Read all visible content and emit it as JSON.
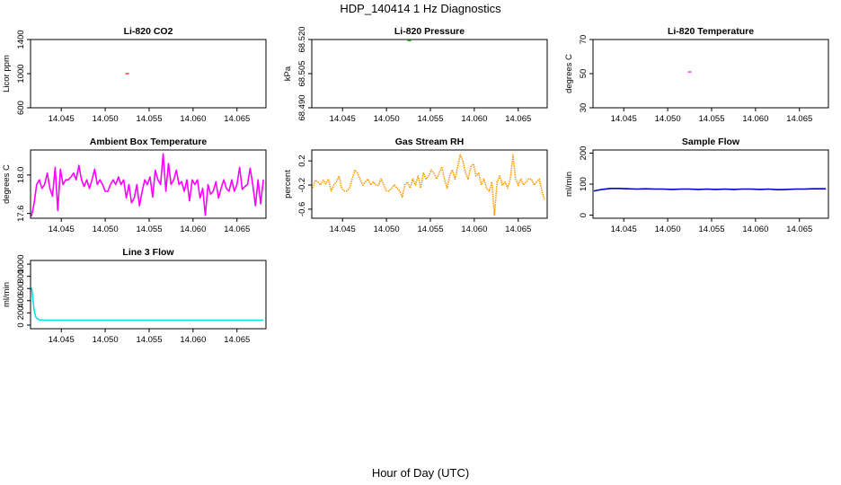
{
  "main_title": "HDP_140414  1 Hz Diagnostics",
  "x_axis_label": "Hour of Day (UTC)",
  "chart_data": [
    {
      "type": "scatter",
      "title": "Li-820 CO2",
      "ylabel": "Licor ppm",
      "xlim": [
        14.0415,
        14.0683
      ],
      "ylim": [
        600,
        1400
      ],
      "xticks": [
        "14.045",
        "14.050",
        "14.055",
        "14.060",
        "14.065"
      ],
      "yticks": [
        "600",
        "1000",
        "1400"
      ],
      "color": "#ff0000",
      "series": [
        {
          "x": [
            14.0525
          ],
          "y": [
            1000
          ]
        }
      ]
    },
    {
      "type": "scatter",
      "title": "Li-820 Pressure",
      "ylabel": "kPa",
      "xlim": [
        14.0415,
        14.0683
      ],
      "ylim": [
        68.49,
        68.52
      ],
      "xticks": [
        "14.045",
        "14.050",
        "14.055",
        "14.060",
        "14.065"
      ],
      "yticks": [
        "68.490",
        "68.505",
        "68.520"
      ],
      "color": "#00aa00",
      "series": [
        {
          "x": [
            14.0526
          ],
          "y": [
            68.5195
          ]
        }
      ]
    },
    {
      "type": "scatter",
      "title": "Li-820 Temperature",
      "ylabel": "degrees C",
      "xlim": [
        14.0415,
        14.0683
      ],
      "ylim": [
        30,
        70
      ],
      "xticks": [
        "14.045",
        "14.050",
        "14.055",
        "14.060",
        "14.065"
      ],
      "yticks": [
        "30",
        "50",
        "70"
      ],
      "color": "#ff00ff",
      "series": [
        {
          "x": [
            14.0525
          ],
          "y": [
            51
          ]
        }
      ]
    },
    {
      "type": "line",
      "title": "Ambient Box Temperature",
      "ylabel": "degrees C",
      "xlim": [
        14.0415,
        14.0683
      ],
      "ylim": [
        17.55,
        18.26
      ],
      "xticks": [
        "14.045",
        "14.050",
        "14.055",
        "14.060",
        "14.065"
      ],
      "yticks": [
        "17.6",
        "18.0"
      ],
      "color": "#ff00ff",
      "series": [
        {
          "x": [
            14.0416,
            14.0419,
            14.0422,
            14.0425,
            14.0428,
            14.0431,
            14.0434,
            14.0437,
            14.044,
            14.0443,
            14.0446,
            14.0449,
            14.0452,
            14.0455,
            14.0458,
            14.0461,
            14.0464,
            14.0467,
            14.047,
            14.0473,
            14.0476,
            14.0479,
            14.0482,
            14.0485,
            14.0488,
            14.0491,
            14.0494,
            14.0497,
            14.05,
            14.0503,
            14.0506,
            14.0509,
            14.0512,
            14.0515,
            14.0518,
            14.0521,
            14.0524,
            14.0527,
            14.053,
            14.0533,
            14.0536,
            14.0539,
            14.0542,
            14.0545,
            14.0548,
            14.0551,
            14.0554,
            14.0557,
            14.056,
            14.0563,
            14.0566,
            14.0569,
            14.0572,
            14.0575,
            14.0578,
            14.0581,
            14.0584,
            14.0587,
            14.059,
            14.0593,
            14.0596,
            14.0599,
            14.0602,
            14.0605,
            14.0608,
            14.0611,
            14.0614,
            14.0617,
            14.062,
            14.0623,
            14.0626,
            14.0629,
            14.0632,
            14.0635,
            14.0638,
            14.0641,
            14.0644,
            14.0647,
            14.065,
            14.0653,
            14.0656,
            14.0659,
            14.0662,
            14.0665,
            14.0668,
            14.0671,
            14.0674,
            14.0677,
            14.068
          ],
          "y": [
            17.57,
            17.7,
            17.9,
            17.95,
            17.86,
            17.9,
            18.02,
            17.86,
            17.78,
            18.08,
            17.63,
            18.06,
            17.9,
            17.95,
            17.95,
            17.98,
            18.02,
            17.95,
            18.1,
            17.95,
            17.88,
            17.95,
            17.86,
            17.95,
            18.06,
            17.9,
            17.95,
            17.9,
            17.83,
            17.83,
            17.9,
            17.95,
            17.9,
            17.98,
            17.9,
            17.95,
            17.76,
            17.9,
            17.71,
            17.76,
            17.9,
            17.68,
            17.83,
            17.95,
            17.9,
            17.98,
            17.77,
            18.05,
            17.95,
            17.9,
            18.22,
            17.83,
            18.12,
            17.9,
            17.95,
            18.05,
            17.9,
            17.93,
            17.83,
            17.95,
            17.73,
            17.95,
            17.9,
            17.95,
            17.76,
            17.86,
            17.58,
            17.9,
            17.8,
            17.83,
            17.93,
            17.76,
            17.86,
            17.95,
            17.86,
            17.83,
            17.95,
            17.83,
            17.9,
            18.08,
            17.85,
            17.88,
            17.9,
            18.07,
            17.9,
            17.68,
            17.95,
            17.7,
            17.95
          ]
        }
      ]
    },
    {
      "type": "line",
      "title": "Gas Stream RH",
      "ylabel": "percent",
      "xlim": [
        14.0415,
        14.0683
      ],
      "ylim": [
        -0.75,
        0.38
      ],
      "xticks": [
        "14.045",
        "14.050",
        "14.055",
        "14.060",
        "14.065"
      ],
      "yticks": [
        "-0.6",
        "-0.2",
        "0.2"
      ],
      "color": "#ff9900",
      "series": [
        {
          "x": [
            14.0416,
            14.0419,
            14.0422,
            14.0425,
            14.0428,
            14.0431,
            14.0434,
            14.0437,
            14.044,
            14.0443,
            14.0446,
            14.0449,
            14.0452,
            14.0455,
            14.0458,
            14.0461,
            14.0464,
            14.0467,
            14.047,
            14.0473,
            14.0476,
            14.0479,
            14.0482,
            14.0485,
            14.0488,
            14.0491,
            14.0494,
            14.0497,
            14.05,
            14.0503,
            14.0506,
            14.0509,
            14.0512,
            14.0515,
            14.0518,
            14.0521,
            14.0524,
            14.0527,
            14.053,
            14.0533,
            14.0536,
            14.0539,
            14.0542,
            14.0545,
            14.0548,
            14.0551,
            14.0554,
            14.0557,
            14.056,
            14.0563,
            14.0566,
            14.0569,
            14.0572,
            14.0575,
            14.0578,
            14.0581,
            14.0584,
            14.0587,
            14.059,
            14.0593,
            14.0596,
            14.0599,
            14.0602,
            14.0605,
            14.0608,
            14.0611,
            14.0614,
            14.0617,
            14.062,
            14.0623,
            14.0626,
            14.0629,
            14.0632,
            14.0635,
            14.0638,
            14.0641,
            14.0644,
            14.0647,
            14.065,
            14.0653,
            14.0656,
            14.0659,
            14.0662,
            14.0665,
            14.0668,
            14.0671,
            14.0674,
            14.0677,
            14.068
          ],
          "y": [
            -0.25,
            -0.12,
            -0.15,
            -0.2,
            -0.12,
            -0.18,
            -0.1,
            -0.3,
            -0.2,
            -0.15,
            -0.05,
            -0.25,
            -0.3,
            -0.3,
            -0.25,
            -0.1,
            0.05,
            0.0,
            -0.1,
            -0.2,
            -0.15,
            -0.1,
            -0.2,
            -0.15,
            -0.2,
            -0.2,
            -0.1,
            -0.2,
            -0.3,
            -0.3,
            -0.25,
            -0.2,
            -0.25,
            -0.3,
            -0.4,
            -0.2,
            -0.15,
            -0.25,
            -0.1,
            -0.2,
            -0.05,
            -0.25,
            0.0,
            -0.1,
            -0.05,
            0.05,
            0.0,
            -0.1,
            0.0,
            0.1,
            -0.1,
            -0.25,
            -0.05,
            0.05,
            -0.1,
            0.1,
            0.3,
            0.2,
            0.0,
            -0.1,
            0.1,
            0.15,
            -0.05,
            0.0,
            -0.2,
            -0.1,
            -0.25,
            -0.3,
            -0.15,
            -0.7,
            -0.15,
            -0.05,
            -0.2,
            -0.15,
            -0.25,
            -0.1,
            0.3,
            -0.1,
            -0.2,
            -0.1,
            -0.2,
            -0.15,
            -0.1,
            -0.1,
            -0.2,
            -0.15,
            -0.1,
            -0.3,
            -0.45
          ]
        }
      ]
    },
    {
      "type": "line",
      "title": "Sample Flow",
      "ylabel": "ml/min",
      "xlim": [
        14.0415,
        14.0683
      ],
      "ylim": [
        -10,
        210
      ],
      "xticks": [
        "14.045",
        "14.050",
        "14.055",
        "14.060",
        "14.065"
      ],
      "yticks": [
        "0",
        "100",
        "200"
      ],
      "color": "#0000cc",
      "series": [
        {
          "x": [
            14.0416,
            14.0425,
            14.0435,
            14.0445,
            14.0455,
            14.0465,
            14.0475,
            14.0485,
            14.0495,
            14.0505,
            14.0515,
            14.0525,
            14.0535,
            14.0545,
            14.0555,
            14.0565,
            14.0575,
            14.0585,
            14.0595,
            14.0605,
            14.0615,
            14.0625,
            14.0635,
            14.0645,
            14.0655,
            14.0665,
            14.0675,
            14.068
          ],
          "y": [
            78,
            83,
            86,
            86,
            85,
            84,
            85,
            84,
            84,
            83,
            84,
            84,
            83,
            84,
            83,
            84,
            83,
            84,
            84,
            83,
            84,
            82,
            83,
            84,
            84,
            85,
            85,
            85
          ]
        }
      ]
    },
    {
      "type": "line",
      "title": "Line 3 Flow",
      "ylabel": "ml/min",
      "xlim": [
        14.0415,
        14.0683
      ],
      "ylim": [
        -60,
        1060
      ],
      "xticks": [
        "14.045",
        "14.050",
        "14.055",
        "14.060",
        "14.065"
      ],
      "yticks": [
        "0",
        "200",
        "400",
        "600",
        "800",
        "1000"
      ],
      "color": "#00e5e5",
      "series": [
        {
          "x": [
            14.0416,
            14.0417,
            14.0418,
            14.0419,
            14.042,
            14.0421,
            14.0423,
            14.0425,
            14.043,
            14.044,
            14.045,
            14.046,
            14.048,
            14.05,
            14.052,
            14.054,
            14.056,
            14.058,
            14.06,
            14.062,
            14.064,
            14.066,
            14.068
          ],
          "y": [
            620,
            520,
            380,
            260,
            180,
            130,
            100,
            85,
            80,
            80,
            80,
            80,
            80,
            80,
            80,
            80,
            80,
            80,
            80,
            80,
            80,
            80,
            80
          ]
        }
      ]
    }
  ]
}
